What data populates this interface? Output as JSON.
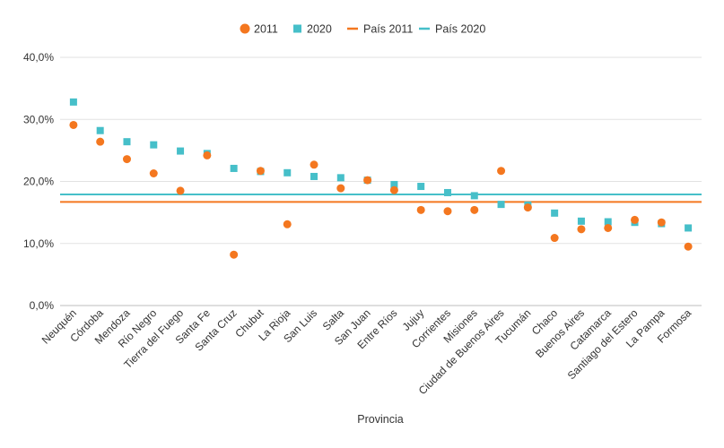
{
  "chart_data": {
    "type": "scatter",
    "title": "",
    "xlabel": "Provincia",
    "ylabel": "",
    "ylim": [
      0,
      40
    ],
    "yticks": [
      "0,0%",
      "10,0%",
      "20,0%",
      "30,0%",
      "40,0%"
    ],
    "grid": true,
    "legend_position": "top-center",
    "categories": [
      "Neuquén",
      "Córdoba",
      "Mendoza",
      "Río Negro",
      "Tierra del Fuego",
      "Santa Fe",
      "Santa Cruz",
      "Chubut",
      "La Rioja",
      "San Luis",
      "Salta",
      "San Juan",
      "Entre Ríos",
      "Jujuy",
      "Corrientes",
      "Misiones",
      "Ciudad de Buenos Aires",
      "Tucumán",
      "Chaco",
      "Buenos Aires",
      "Catamarca",
      "Santiago del Estero",
      "La Pampa",
      "Formosa"
    ],
    "series": [
      {
        "name": "2011",
        "marker": "circle",
        "color": "#F4771F",
        "values": [
          29.1,
          26.4,
          23.6,
          21.3,
          18.5,
          24.2,
          8.2,
          21.7,
          13.1,
          22.7,
          18.9,
          20.2,
          18.6,
          15.4,
          15.2,
          15.4,
          21.7,
          15.8,
          10.9,
          12.3,
          12.5,
          13.8,
          13.4,
          9.5
        ]
      },
      {
        "name": "2020",
        "marker": "square",
        "color": "#46BFC9",
        "values": [
          32.8,
          28.2,
          26.4,
          25.9,
          24.9,
          24.5,
          22.1,
          21.6,
          21.4,
          20.8,
          20.6,
          20.2,
          19.5,
          19.2,
          18.2,
          17.7,
          16.3,
          16.2,
          14.9,
          13.6,
          13.5,
          13.4,
          13.2,
          12.5
        ]
      }
    ],
    "reference_lines": [
      {
        "name": "País 2011",
        "value": 16.7,
        "color": "#F4771F"
      },
      {
        "name": "País 2020",
        "value": 17.9,
        "color": "#46BFC9"
      }
    ]
  }
}
